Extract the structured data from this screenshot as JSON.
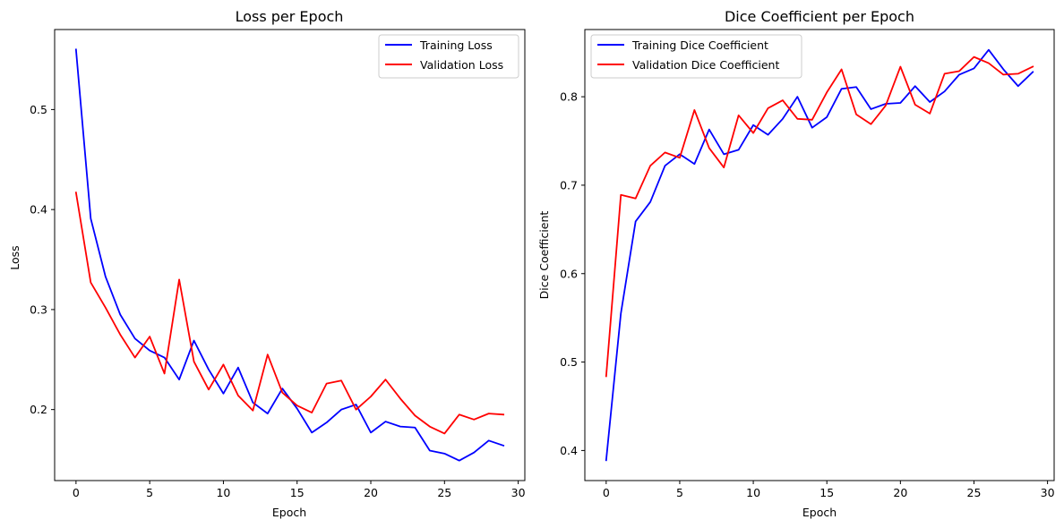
{
  "chart_data": [
    {
      "type": "line",
      "title": "Loss per Epoch",
      "xlabel": "Epoch",
      "ylabel": "Loss",
      "xlim": [
        -1.45,
        30.45
      ],
      "ylim": [
        0.129,
        0.58
      ],
      "xticks": [
        0,
        5,
        10,
        15,
        20,
        25,
        30
      ],
      "yticks": [
        0.2,
        0.3,
        0.4,
        0.5
      ],
      "ytick_labels": [
        "0.2",
        "0.3",
        "0.4",
        "0.5"
      ],
      "grid": false,
      "legend_position": "upper right",
      "x": [
        0,
        1,
        2,
        3,
        4,
        5,
        6,
        7,
        8,
        9,
        10,
        11,
        12,
        13,
        14,
        15,
        16,
        17,
        18,
        19,
        20,
        21,
        22,
        23,
        24,
        25,
        26,
        27,
        28,
        29
      ],
      "series": [
        {
          "name": "Training Loss",
          "color": "#0000ff",
          "values": [
            0.56,
            0.391,
            0.333,
            0.295,
            0.271,
            0.259,
            0.252,
            0.23,
            0.269,
            0.24,
            0.216,
            0.242,
            0.207,
            0.196,
            0.221,
            0.201,
            0.177,
            0.187,
            0.2,
            0.205,
            0.177,
            0.188,
            0.183,
            0.182,
            0.159,
            0.156,
            0.149,
            0.157,
            0.169,
            0.164
          ]
        },
        {
          "name": "Validation Loss",
          "color": "#ff0000",
          "values": [
            0.417,
            0.327,
            0.302,
            0.275,
            0.252,
            0.273,
            0.236,
            0.33,
            0.248,
            0.22,
            0.245,
            0.214,
            0.199,
            0.255,
            0.217,
            0.204,
            0.197,
            0.226,
            0.229,
            0.2,
            0.213,
            0.23,
            0.211,
            0.194,
            0.183,
            0.176,
            0.195,
            0.19,
            0.196,
            0.195
          ]
        }
      ]
    },
    {
      "type": "line",
      "title": "Dice Coefficient per Epoch",
      "xlabel": "Epoch",
      "ylabel": "Dice Coefficient",
      "xlim": [
        -1.45,
        30.45
      ],
      "ylim": [
        0.366,
        0.876
      ],
      "xticks": [
        0,
        5,
        10,
        15,
        20,
        25,
        30
      ],
      "yticks": [
        0.4,
        0.5,
        0.6,
        0.7,
        0.8
      ],
      "ytick_labels": [
        "0.4",
        "0.5",
        "0.6",
        "0.7",
        "0.8"
      ],
      "grid": false,
      "legend_position": "upper left",
      "x": [
        0,
        1,
        2,
        3,
        4,
        5,
        6,
        7,
        8,
        9,
        10,
        11,
        12,
        13,
        14,
        15,
        16,
        17,
        18,
        19,
        20,
        21,
        22,
        23,
        24,
        25,
        26,
        27,
        28,
        29
      ],
      "series": [
        {
          "name": "Training Dice Coefficient",
          "color": "#0000ff",
          "values": [
            0.389,
            0.555,
            0.659,
            0.681,
            0.722,
            0.735,
            0.724,
            0.763,
            0.735,
            0.74,
            0.768,
            0.757,
            0.775,
            0.8,
            0.765,
            0.777,
            0.809,
            0.811,
            0.786,
            0.792,
            0.793,
            0.812,
            0.794,
            0.806,
            0.825,
            0.832,
            0.853,
            0.831,
            0.812,
            0.828
          ]
        },
        {
          "name": "Validation Dice Coefficient",
          "color": "#ff0000",
          "values": [
            0.484,
            0.689,
            0.685,
            0.722,
            0.737,
            0.731,
            0.785,
            0.742,
            0.72,
            0.779,
            0.759,
            0.787,
            0.796,
            0.775,
            0.774,
            0.805,
            0.831,
            0.78,
            0.769,
            0.79,
            0.834,
            0.791,
            0.781,
            0.826,
            0.829,
            0.845,
            0.838,
            0.825,
            0.826,
            0.834
          ]
        }
      ]
    }
  ]
}
